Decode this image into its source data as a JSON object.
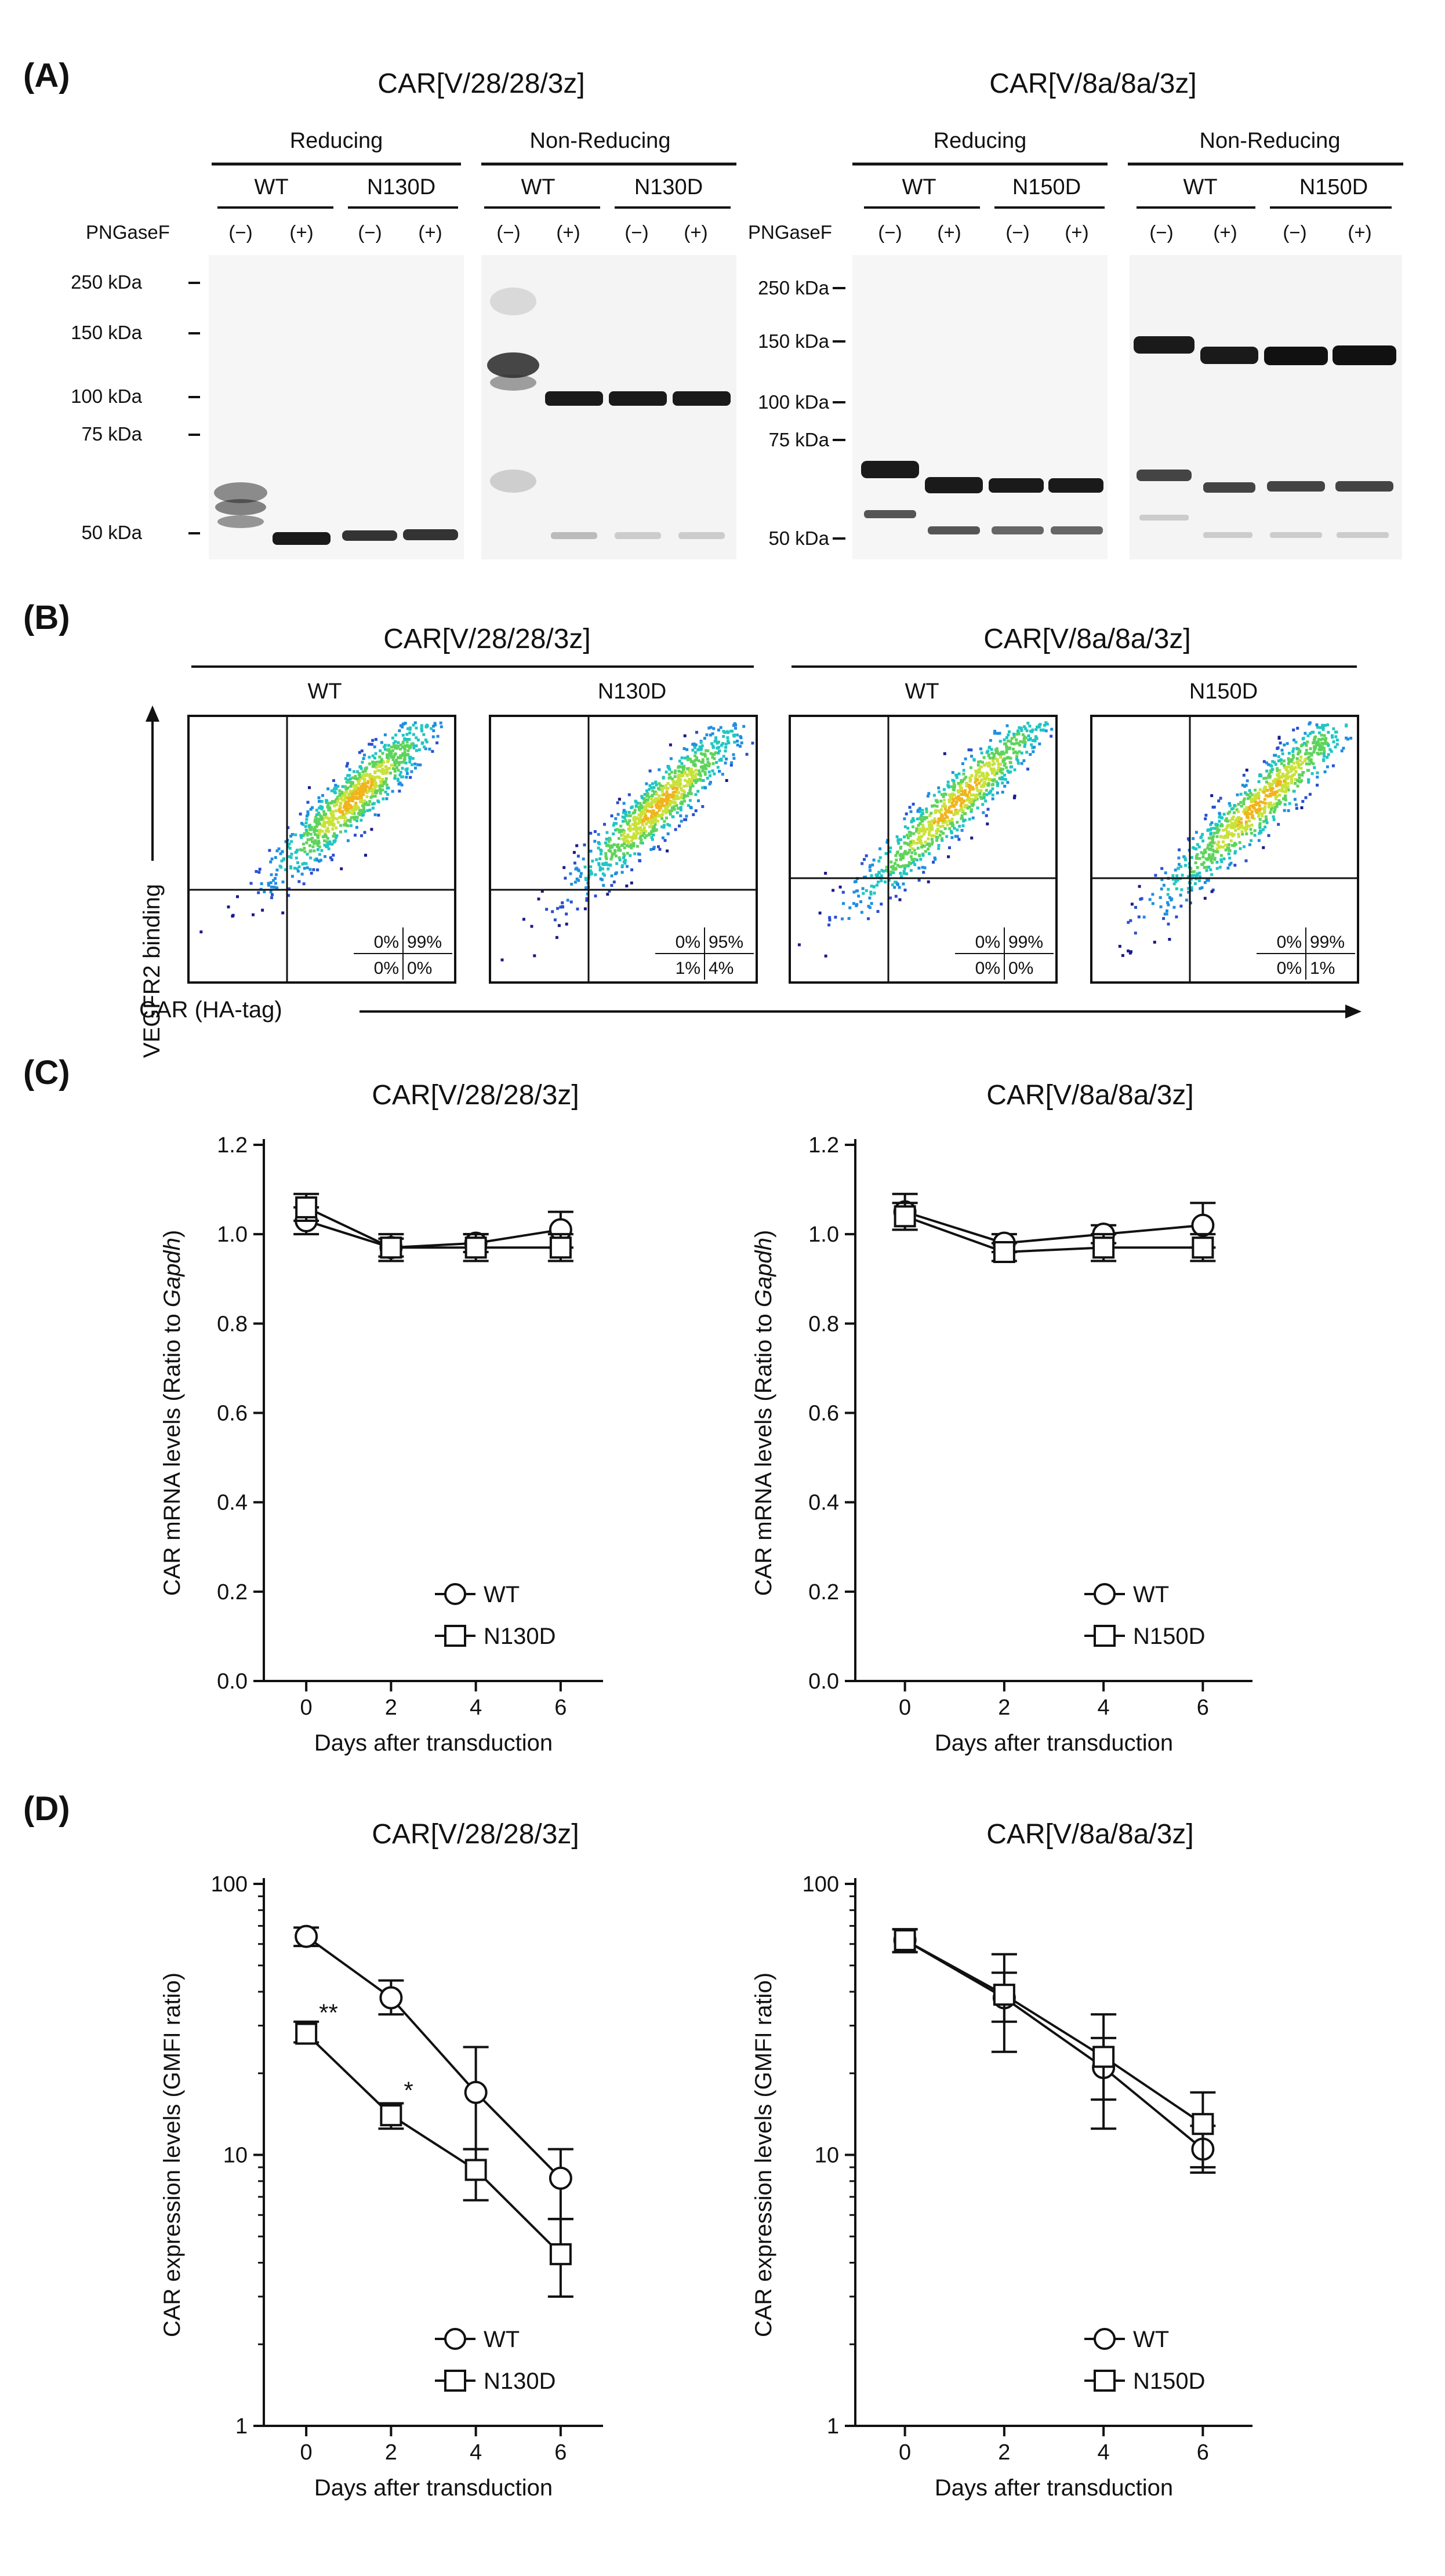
{
  "panels": {
    "A": {
      "letter": "(A)",
      "constructs": [
        {
          "title": "CAR[V/28/28/3z]",
          "conditions": [
            "Reducing",
            "Non-Reducing"
          ],
          "variants": [
            "WT",
            "N130D"
          ],
          "pngase_label": "PNGaseF",
          "treatments": [
            "(−)",
            "(+)",
            "(−)",
            "(+)",
            "(−)",
            "(+)",
            "(−)",
            "(+)"
          ],
          "markers": [
            "250 kDa",
            "150 kDa",
            "100 kDa",
            "75 kDa",
            "50 kDa"
          ]
        },
        {
          "title": "CAR[V/8a/8a/3z]",
          "conditions": [
            "Reducing",
            "Non-Reducing"
          ],
          "variants": [
            "WT",
            "N150D"
          ],
          "pngase_label": "PNGaseF",
          "treatments": [
            "(−)",
            "(+)",
            "(−)",
            "(+)",
            "(−)",
            "(+)",
            "(−)",
            "(+)"
          ],
          "markers": [
            "250 kDa",
            "150 kDa",
            "100 kDa",
            "75 kDa",
            "50 kDa"
          ]
        }
      ]
    },
    "B": {
      "letter": "(B)",
      "y_axis_label": "VEGFR2 binding",
      "x_axis_label": "CAR (HA-tag)",
      "constructs": [
        {
          "title": "CAR[V/28/28/3z]",
          "plots": [
            {
              "label": "WT",
              "quadrants": [
                "0%",
                "99%",
                "0%",
                "0%"
              ]
            },
            {
              "label": "N130D",
              "quadrants": [
                "0%",
                "95%",
                "1%",
                "4%"
              ]
            }
          ]
        },
        {
          "title": "CAR[V/8a/8a/3z]",
          "plots": [
            {
              "label": "WT",
              "quadrants": [
                "0%",
                "99%",
                "0%",
                "0%"
              ]
            },
            {
              "label": "N150D",
              "quadrants": [
                "0%",
                "99%",
                "0%",
                "1%"
              ]
            }
          ]
        }
      ]
    },
    "C": {
      "letter": "(C)"
    },
    "D": {
      "letter": "(D)"
    }
  },
  "chart_data": [
    {
      "id": "C1",
      "type": "line",
      "title": "CAR[V/28/28/3z]",
      "xlabel": "Days after transduction",
      "ylabel": "CAR mRNA levels (Ratio to ",
      "ylabel_italic": "Gapdh",
      "ylabel_end": ")",
      "x": [
        0,
        2,
        4,
        6
      ],
      "ylim": [
        0,
        1.2
      ],
      "yticks": [
        0.0,
        0.2,
        0.4,
        0.6,
        0.8,
        1.0,
        1.2
      ],
      "ytick_labels": [
        "0.0",
        "0.2",
        "0.4",
        "0.6",
        "0.8",
        "1.0",
        "1.2"
      ],
      "xtick_labels": [
        "0",
        "2",
        "4",
        "6"
      ],
      "series": [
        {
          "name": "WT",
          "marker": "circle",
          "values": [
            1.03,
            0.97,
            0.98,
            1.01
          ],
          "errors": [
            0.03,
            0.02,
            0.02,
            0.04
          ]
        },
        {
          "name": "N130D",
          "marker": "square",
          "values": [
            1.06,
            0.97,
            0.97,
            0.97
          ],
          "errors": [
            0.03,
            0.03,
            0.03,
            0.03
          ]
        }
      ]
    },
    {
      "id": "C2",
      "type": "line",
      "title": "CAR[V/8a/8a/3z]",
      "xlabel": "Days after transduction",
      "ylabel": "CAR mRNA levels (Ratio to ",
      "ylabel_italic": "Gapdh",
      "ylabel_end": ")",
      "x": [
        0,
        2,
        4,
        6
      ],
      "ylim": [
        0,
        1.2
      ],
      "yticks": [
        0.0,
        0.2,
        0.4,
        0.6,
        0.8,
        1.0,
        1.2
      ],
      "ytick_labels": [
        "0.0",
        "0.2",
        "0.4",
        "0.6",
        "0.8",
        "1.0",
        "1.2"
      ],
      "xtick_labels": [
        "0",
        "2",
        "4",
        "6"
      ],
      "series": [
        {
          "name": "WT",
          "marker": "circle",
          "values": [
            1.05,
            0.98,
            1.0,
            1.02
          ],
          "errors": [
            0.04,
            0.02,
            0.02,
            0.05
          ]
        },
        {
          "name": "N150D",
          "marker": "square",
          "values": [
            1.04,
            0.96,
            0.97,
            0.97
          ],
          "errors": [
            0.03,
            0.02,
            0.03,
            0.03
          ]
        }
      ]
    },
    {
      "id": "D1",
      "type": "line",
      "yscale": "log",
      "title": "CAR[V/28/28/3z]",
      "xlabel": "Days after transduction",
      "ylabel": "CAR expression levels (GMFI ratio)",
      "x": [
        0,
        2,
        4,
        6
      ],
      "ylim": [
        1,
        100
      ],
      "yticks": [
        1,
        10,
        100
      ],
      "ytick_labels": [
        "1",
        "10",
        "100"
      ],
      "xtick_labels": [
        "0",
        "2",
        "4",
        "6"
      ],
      "series": [
        {
          "name": "WT",
          "marker": "circle",
          "values": [
            64,
            38,
            17,
            8.2
          ],
          "err_low": [
            59,
            33,
            10.5,
            5.8
          ],
          "err_high": [
            69,
            44,
            25,
            10.5
          ]
        },
        {
          "name": "N130D",
          "marker": "square",
          "values": [
            28,
            14,
            8.8,
            4.3
          ],
          "err_low": [
            26,
            12.5,
            6.8,
            3.0
          ],
          "err_high": [
            31,
            15.5,
            10.5,
            5.8
          ]
        }
      ],
      "annotations": [
        {
          "text": "**",
          "x": 0,
          "y": 30
        },
        {
          "text": "*",
          "x": 2,
          "y": 15.5
        }
      ]
    },
    {
      "id": "D2",
      "type": "line",
      "yscale": "log",
      "title": "CAR[V/8a/8a/3z]",
      "xlabel": "Days after transduction",
      "ylabel": "CAR expression levels (GMFI ratio)",
      "x": [
        0,
        2,
        4,
        6
      ],
      "ylim": [
        1,
        100
      ],
      "yticks": [
        1,
        10,
        100
      ],
      "ytick_labels": [
        "1",
        "10",
        "100"
      ],
      "xtick_labels": [
        "0",
        "2",
        "4",
        "6"
      ],
      "series": [
        {
          "name": "WT",
          "marker": "circle",
          "values": [
            62,
            38,
            21,
            10.5
          ],
          "err_low": [
            56,
            24,
            12.5,
            8.6
          ],
          "err_high": [
            68,
            55,
            33,
            12.8
          ]
        },
        {
          "name": "N150D",
          "marker": "square",
          "values": [
            62,
            39,
            23,
            13
          ],
          "err_low": [
            56,
            31,
            16,
            9.0
          ],
          "err_high": [
            68,
            47,
            27,
            17
          ]
        }
      ],
      "annotations": []
    }
  ]
}
